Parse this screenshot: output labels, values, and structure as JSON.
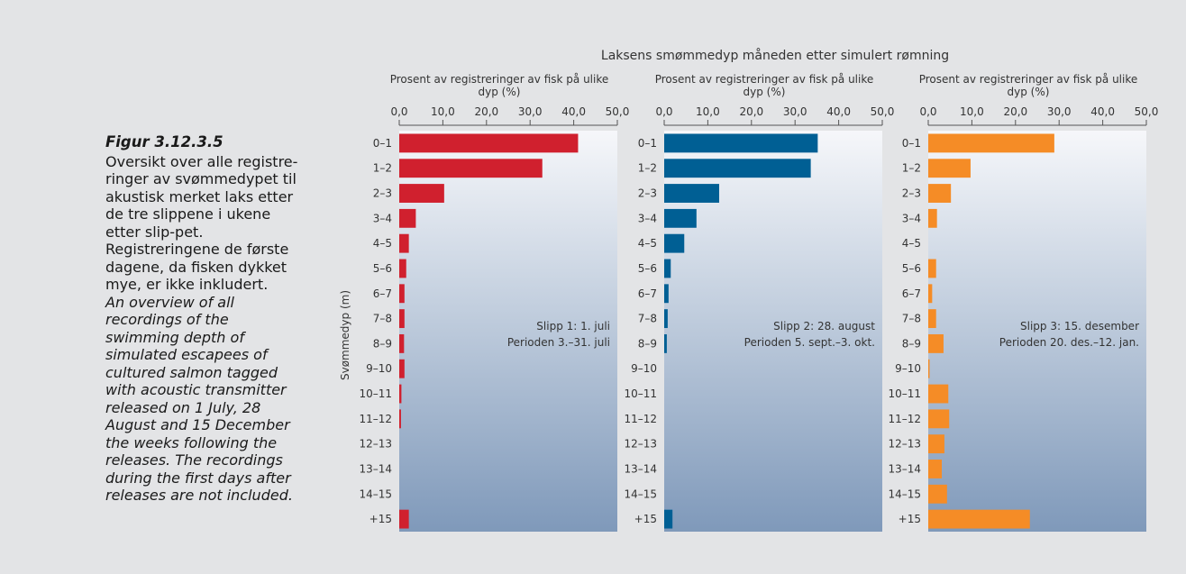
{
  "caption": {
    "figure_label": "Figur 3.12.3.5",
    "norwegian": "Oversikt over alle registre-ringer av svømmedypet til akustisk merket laks etter de tre slippene i ukene etter slip-pet. Registreringene de første dagene, da fisken dykket mye, er ikke inkludert.",
    "english": "An overview of all recordings of the swimming depth of simulated escapees of cultured salmon tagged with acoustic transmitter released on 1 July, 28 August and 15 December the weeks following the releases. The recordings during the first days after releases are not included."
  },
  "chart_data": {
    "type": "bar",
    "orientation": "horizontal",
    "title": "Laksens smømmedyp måneden etter simulert rømning",
    "ylabel": "Svømmedyp (m)",
    "xlabel": "Prosent av registreringer av fisk på ulike dyp (%)",
    "xlim": [
      0,
      50
    ],
    "xticks": [
      "0,0",
      "10,0",
      "20,0",
      "30,0",
      "40,0",
      "50,0"
    ],
    "categories": [
      "0–1",
      "1–2",
      "2–3",
      "3–4",
      "4–5",
      "5–6",
      "6–7",
      "7–8",
      "8–9",
      "9–10",
      "10–11",
      "11–12",
      "12–13",
      "13–14",
      "14–15",
      "+15"
    ],
    "grid": false,
    "panels": [
      {
        "release": "Slipp 1: 1. juli",
        "period": "Perioden 3.–31. juli",
        "color": "#d0202e",
        "values": [
          41.0,
          32.8,
          10.3,
          3.8,
          2.2,
          1.6,
          1.2,
          1.2,
          1.1,
          1.2,
          0.5,
          0.4,
          0,
          0,
          0,
          2.2
        ]
      },
      {
        "release": "Slipp 2: 28. august",
        "period": "Perioden 5. sept.–3. okt.",
        "color": "#005f94",
        "values": [
          35.2,
          33.6,
          12.6,
          7.4,
          4.6,
          1.5,
          1.0,
          0.8,
          0.6,
          0,
          0,
          0,
          0,
          0,
          0,
          1.9
        ]
      },
      {
        "release": "Slipp 3: 15. desember",
        "period": "Perioden 20. des.–12. jan.",
        "color": "#f58c26",
        "values": [
          28.9,
          9.7,
          5.2,
          2.0,
          0,
          1.8,
          0.9,
          1.8,
          3.5,
          0.3,
          4.6,
          4.8,
          3.7,
          3.1,
          4.3,
          23.3
        ]
      }
    ]
  }
}
